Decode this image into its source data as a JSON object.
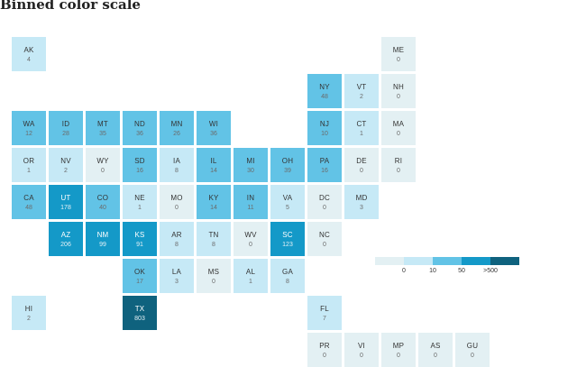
{
  "title": "Binned color scale",
  "legend": {
    "bins": [
      {
        "color": "#e3f0f3"
      },
      {
        "color": "#c6e9f6"
      },
      {
        "color": "#62c3e6"
      },
      {
        "color": "#1499c8"
      },
      {
        "color": "#0f627e"
      }
    ],
    "ticks": [
      "0",
      "10",
      "50",
      ">500"
    ]
  },
  "chart_data": {
    "type": "tile-grid-map",
    "title": "Binned color scale",
    "bins": [
      {
        "range": "0",
        "color": "#e3f0f3"
      },
      {
        "range": "1-9",
        "color": "#c6e9f6"
      },
      {
        "range": "10-49",
        "color": "#62c3e6"
      },
      {
        "range": "50-499",
        "color": "#1499c8"
      },
      {
        "range": ">500",
        "color": "#0f627e"
      }
    ],
    "tiles": [
      {
        "abbr": "AK",
        "value": 4,
        "col": 0,
        "row": 0
      },
      {
        "abbr": "ME",
        "value": 0,
        "col": 10,
        "row": 0
      },
      {
        "abbr": "NY",
        "value": 48,
        "col": 8,
        "row": 1
      },
      {
        "abbr": "VT",
        "value": 2,
        "col": 9,
        "row": 1
      },
      {
        "abbr": "NH",
        "value": 0,
        "col": 10,
        "row": 1
      },
      {
        "abbr": "WA",
        "value": 12,
        "col": 0,
        "row": 2
      },
      {
        "abbr": "ID",
        "value": 28,
        "col": 1,
        "row": 2
      },
      {
        "abbr": "MT",
        "value": 35,
        "col": 2,
        "row": 2
      },
      {
        "abbr": "ND",
        "value": 36,
        "col": 3,
        "row": 2
      },
      {
        "abbr": "MN",
        "value": 26,
        "col": 4,
        "row": 2
      },
      {
        "abbr": "WI",
        "value": 36,
        "col": 5,
        "row": 2
      },
      {
        "abbr": "NJ",
        "value": 10,
        "col": 8,
        "row": 2
      },
      {
        "abbr": "CT",
        "value": 1,
        "col": 9,
        "row": 2
      },
      {
        "abbr": "MA",
        "value": 0,
        "col": 10,
        "row": 2
      },
      {
        "abbr": "OR",
        "value": 1,
        "col": 0,
        "row": 3
      },
      {
        "abbr": "NV",
        "value": 2,
        "col": 1,
        "row": 3
      },
      {
        "abbr": "WY",
        "value": 0,
        "col": 2,
        "row": 3
      },
      {
        "abbr": "SD",
        "value": 16,
        "col": 3,
        "row": 3
      },
      {
        "abbr": "IA",
        "value": 8,
        "col": 4,
        "row": 3
      },
      {
        "abbr": "IL",
        "value": 14,
        "col": 5,
        "row": 3
      },
      {
        "abbr": "MI",
        "value": 30,
        "col": 6,
        "row": 3
      },
      {
        "abbr": "OH",
        "value": 39,
        "col": 7,
        "row": 3
      },
      {
        "abbr": "PA",
        "value": 16,
        "col": 8,
        "row": 3
      },
      {
        "abbr": "DE",
        "value": 0,
        "col": 9,
        "row": 3
      },
      {
        "abbr": "RI",
        "value": 0,
        "col": 10,
        "row": 3
      },
      {
        "abbr": "CA",
        "value": 48,
        "col": 0,
        "row": 4
      },
      {
        "abbr": "UT",
        "value": 178,
        "col": 1,
        "row": 4
      },
      {
        "abbr": "CO",
        "value": 40,
        "col": 2,
        "row": 4
      },
      {
        "abbr": "NE",
        "value": 1,
        "col": 3,
        "row": 4
      },
      {
        "abbr": "MO",
        "value": 0,
        "col": 4,
        "row": 4
      },
      {
        "abbr": "KY",
        "value": 14,
        "col": 5,
        "row": 4
      },
      {
        "abbr": "IN",
        "value": 11,
        "col": 6,
        "row": 4
      },
      {
        "abbr": "VA",
        "value": 5,
        "col": 7,
        "row": 4
      },
      {
        "abbr": "DC",
        "value": 0,
        "col": 8,
        "row": 4
      },
      {
        "abbr": "MD",
        "value": 3,
        "col": 9,
        "row": 4
      },
      {
        "abbr": "AZ",
        "value": 206,
        "col": 1,
        "row": 5
      },
      {
        "abbr": "NM",
        "value": 99,
        "col": 2,
        "row": 5
      },
      {
        "abbr": "KS",
        "value": 91,
        "col": 3,
        "row": 5
      },
      {
        "abbr": "AR",
        "value": 8,
        "col": 4,
        "row": 5
      },
      {
        "abbr": "TN",
        "value": 8,
        "col": 5,
        "row": 5
      },
      {
        "abbr": "WV",
        "value": 0,
        "col": 6,
        "row": 5
      },
      {
        "abbr": "SC",
        "value": 123,
        "col": 7,
        "row": 5
      },
      {
        "abbr": "NC",
        "value": 0,
        "col": 8,
        "row": 5
      },
      {
        "abbr": "OK",
        "value": 17,
        "col": 3,
        "row": 6
      },
      {
        "abbr": "LA",
        "value": 3,
        "col": 4,
        "row": 6
      },
      {
        "abbr": "MS",
        "value": 0,
        "col": 5,
        "row": 6
      },
      {
        "abbr": "AL",
        "value": 1,
        "col": 6,
        "row": 6
      },
      {
        "abbr": "GA",
        "value": 8,
        "col": 7,
        "row": 6
      },
      {
        "abbr": "HI",
        "value": 2,
        "col": 0,
        "row": 7
      },
      {
        "abbr": "TX",
        "value": 803,
        "col": 3,
        "row": 7
      },
      {
        "abbr": "FL",
        "value": 7,
        "col": 8,
        "row": 7
      },
      {
        "abbr": "PR",
        "value": 0,
        "col": 8,
        "row": 8
      },
      {
        "abbr": "VI",
        "value": 0,
        "col": 9,
        "row": 8
      },
      {
        "abbr": "MP",
        "value": 0,
        "col": 10,
        "row": 8
      },
      {
        "abbr": "AS",
        "value": 0,
        "col": 11,
        "row": 8
      },
      {
        "abbr": "GU",
        "value": 0,
        "col": 12,
        "row": 8
      }
    ]
  }
}
